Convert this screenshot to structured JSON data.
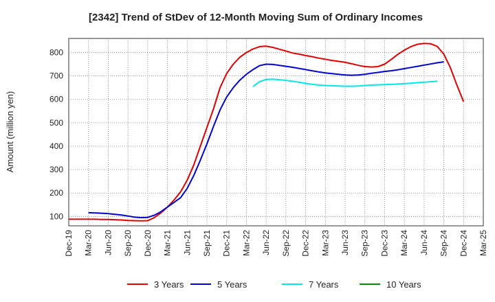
{
  "chart_data": {
    "type": "line",
    "title": "[2342]  Trend of StDev of 12-Month Moving Sum of Ordinary Incomes",
    "ylabel": "Amount (million yen)",
    "xlabel": "",
    "x_ticks": [
      "Dec-19",
      "Mar-20",
      "Jun-20",
      "Sep-20",
      "Dec-20",
      "Mar-21",
      "Jun-21",
      "Sep-21",
      "Dec-21",
      "Mar-22",
      "Jun-22",
      "Sep-22",
      "Dec-22",
      "Mar-23",
      "Jun-23",
      "Sep-23",
      "Dec-23",
      "Mar-24",
      "Jun-24",
      "Sep-24",
      "Dec-24",
      "Mar-25"
    ],
    "y_ticks": [
      100,
      200,
      300,
      400,
      500,
      600,
      700,
      800
    ],
    "ylim": [
      60,
      860
    ],
    "grid": true,
    "legend_position": "bottom",
    "series": [
      {
        "name": "3 Years",
        "color": "#dd0000",
        "values": [
          88,
          88,
          88,
          88,
          88,
          87,
          87,
          86,
          85,
          83,
          82,
          81,
          82,
          95,
          115,
          140,
          170,
          205,
          255,
          320,
          400,
          480,
          560,
          650,
          710,
          750,
          780,
          800,
          815,
          825,
          827,
          822,
          814,
          806,
          798,
          793,
          787,
          782,
          776,
          771,
          766,
          762,
          758,
          752,
          745,
          740,
          738,
          740,
          750,
          770,
          792,
          810,
          825,
          835,
          839,
          837,
          826,
          793,
          735,
          660,
          590
        ]
      },
      {
        "name": "5 Years",
        "color": "#0000cc",
        "values": [
          null,
          null,
          null,
          116,
          115,
          114,
          112,
          109,
          106,
          102,
          97,
          95,
          96,
          105,
          120,
          140,
          160,
          180,
          220,
          275,
          340,
          410,
          485,
          555,
          610,
          650,
          682,
          707,
          727,
          744,
          750,
          749,
          745,
          741,
          737,
          732,
          727,
          722,
          717,
          713,
          710,
          707,
          704,
          703,
          704,
          707,
          711,
          715,
          719,
          722,
          726,
          731,
          736,
          741,
          746,
          751,
          756,
          760
        ]
      },
      {
        "name": "7 Years",
        "color": "#00e5e5",
        "values": [
          null,
          null,
          null,
          null,
          null,
          null,
          null,
          null,
          null,
          null,
          null,
          null,
          null,
          null,
          null,
          null,
          null,
          null,
          null,
          null,
          null,
          null,
          null,
          null,
          null,
          null,
          null,
          null,
          655,
          675,
          685,
          686,
          684,
          681,
          677,
          673,
          668,
          664,
          661,
          659,
          658,
          657,
          656,
          656,
          657,
          659,
          661,
          662,
          663,
          664,
          665,
          667,
          669,
          671,
          673,
          675,
          677
        ]
      },
      {
        "name": "10 Years",
        "color": "#008800",
        "values": []
      }
    ]
  }
}
